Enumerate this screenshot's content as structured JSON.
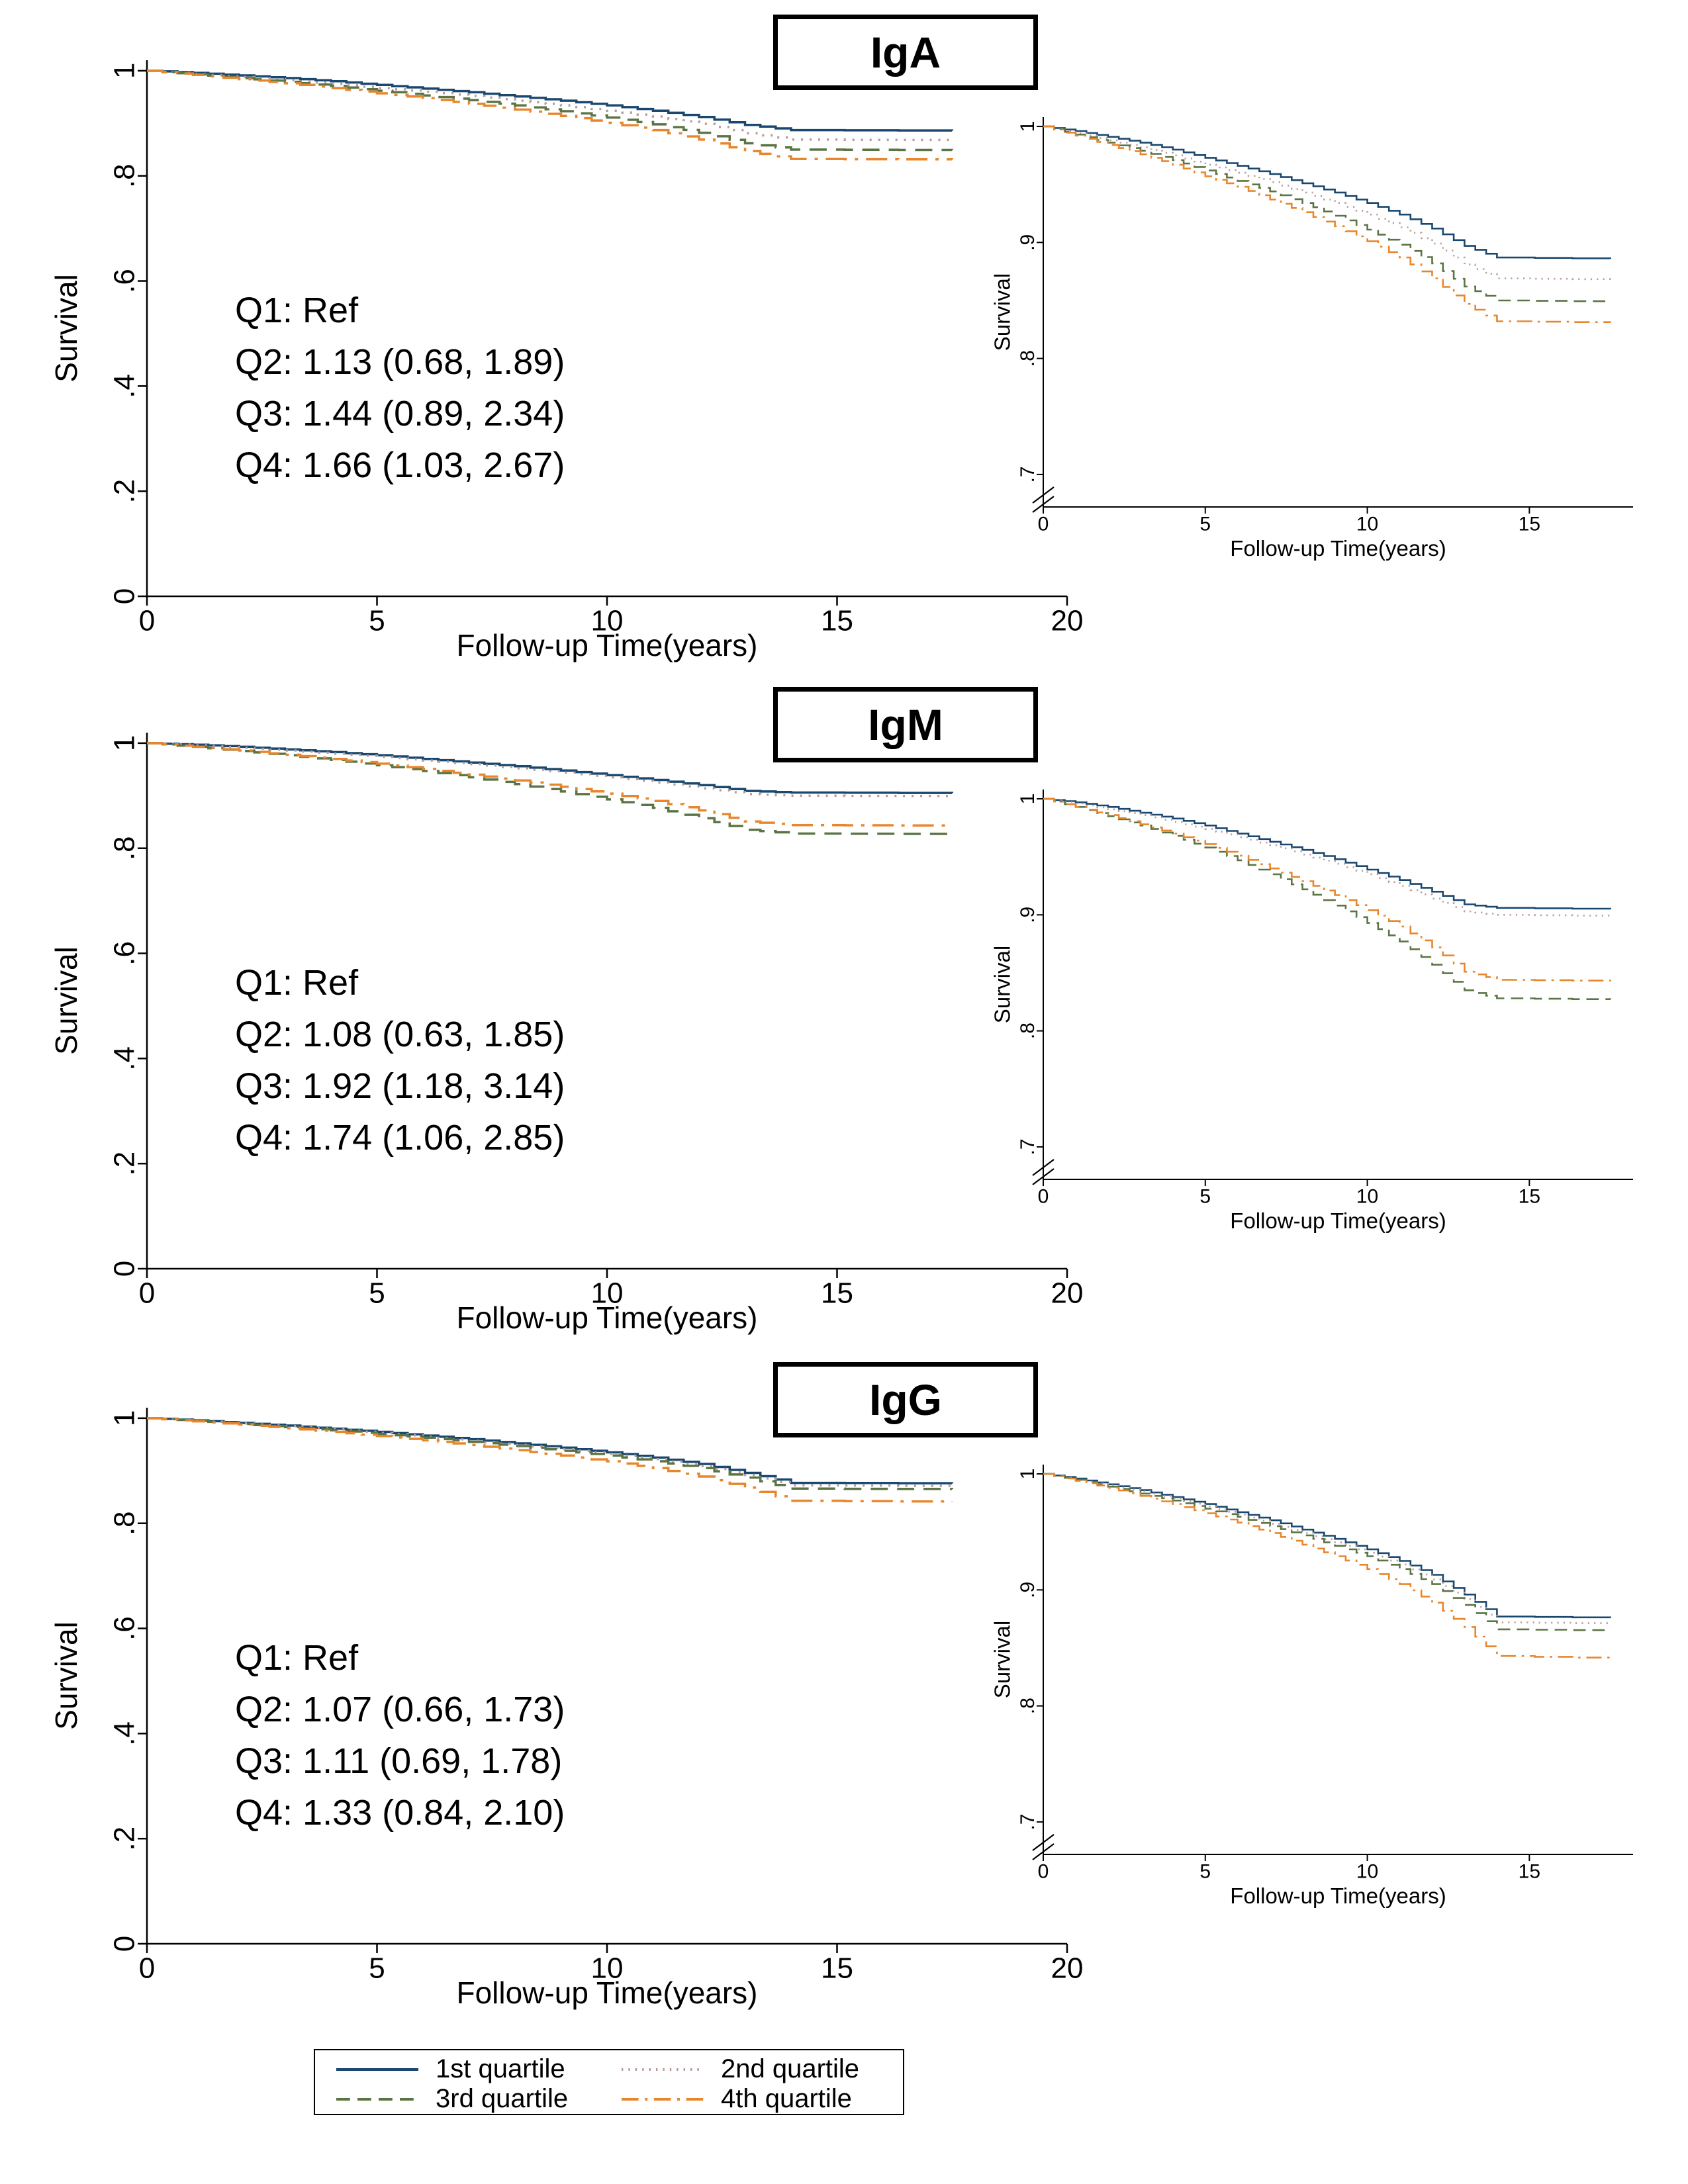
{
  "figure": {
    "background": "#ffffff"
  },
  "legend": {
    "items": [
      {
        "label": "1st quartile",
        "color": "#1a476f",
        "dash": "solid"
      },
      {
        "label": "2nd quartile",
        "color": "#b79b9b",
        "dash": "dot"
      },
      {
        "label": "3rd quartile",
        "color": "#5b7444",
        "dash": "dash"
      },
      {
        "label": "4th quartile",
        "color": "#e8862c",
        "dash": "dashdot"
      }
    ]
  },
  "axes": {
    "main": {
      "xlim": [
        0,
        20
      ],
      "ylim": [
        0,
        1.02
      ],
      "xticks": [
        "0",
        "5",
        "10",
        "15",
        "20"
      ],
      "yticks": [
        "0",
        ".2",
        ".4",
        ".6",
        ".8",
        "1"
      ],
      "axis_break": false
    },
    "inset": {
      "xlim": [
        0,
        18.2
      ],
      "ylim": [
        0.672,
        1.008
      ],
      "xticks": [
        "0",
        "5",
        "10",
        "15"
      ],
      "yticks": [
        ".7",
        ".8",
        ".9",
        "1"
      ],
      "axis_break": true
    }
  },
  "chart_data": [
    {
      "type": "line",
      "title": "IgA",
      "xlabel": "Follow-up Time(years)",
      "ylabel": "Survival",
      "xlim": [
        0,
        20
      ],
      "ylim": [
        0,
        1
      ],
      "annotation_lines": [
        "Q1: Ref",
        "Q2: 1.13 (0.68, 1.89)",
        "Q3: 1.44 (0.89, 2.34)",
        "Q4: 1.66 (1.03, 2.67)"
      ],
      "x": [
        0,
        1,
        2,
        3,
        4,
        5,
        6,
        7,
        8,
        9,
        10,
        11,
        12,
        13,
        14,
        17.5
      ],
      "series": [
        {
          "name": "1st quartile",
          "values": [
            1,
            0.996,
            0.991,
            0.986,
            0.98,
            0.973,
            0.966,
            0.959,
            0.951,
            0.943,
            0.934,
            0.924,
            0.912,
            0.897,
            0.887,
            0.886
          ]
        },
        {
          "name": "2nd quartile",
          "values": [
            1,
            0.994,
            0.988,
            0.982,
            0.975,
            0.967,
            0.96,
            0.952,
            0.943,
            0.934,
            0.924,
            0.913,
            0.899,
            0.881,
            0.869,
            0.868
          ]
        },
        {
          "name": "3rd quartile",
          "values": [
            1,
            0.993,
            0.986,
            0.979,
            0.971,
            0.962,
            0.953,
            0.944,
            0.934,
            0.923,
            0.911,
            0.898,
            0.882,
            0.862,
            0.85,
            0.849
          ]
        },
        {
          "name": "4th quartile",
          "values": [
            1,
            0.992,
            0.984,
            0.976,
            0.967,
            0.957,
            0.948,
            0.937,
            0.926,
            0.914,
            0.901,
            0.887,
            0.869,
            0.847,
            0.832,
            0.831
          ]
        }
      ]
    },
    {
      "type": "line",
      "title": "IgM",
      "xlabel": "Follow-up Time(years)",
      "ylabel": "Survival",
      "xlim": [
        0,
        20
      ],
      "ylim": [
        0,
        1
      ],
      "annotation_lines": [
        "Q1: Ref",
        "Q2: 1.08 (0.63, 1.85)",
        "Q3: 1.92 (1.18, 3.14)",
        "Q4: 1.74 (1.06, 2.85)"
      ],
      "x": [
        0,
        1,
        2,
        3,
        4,
        5,
        6,
        7,
        8,
        9,
        10,
        11,
        12,
        13,
        14,
        17.5
      ],
      "series": [
        {
          "name": "1st quartile",
          "values": [
            1,
            0.997,
            0.993,
            0.988,
            0.983,
            0.977,
            0.97,
            0.963,
            0.956,
            0.948,
            0.939,
            0.93,
            0.92,
            0.909,
            0.906,
            0.905
          ]
        },
        {
          "name": "2nd quartile",
          "values": [
            1,
            0.996,
            0.991,
            0.986,
            0.98,
            0.974,
            0.967,
            0.96,
            0.952,
            0.944,
            0.935,
            0.925,
            0.914,
            0.903,
            0.9,
            0.899
          ]
        },
        {
          "name": "3rd quartile",
          "values": [
            1,
            0.993,
            0.985,
            0.977,
            0.968,
            0.958,
            0.947,
            0.935,
            0.922,
            0.908,
            0.893,
            0.877,
            0.857,
            0.835,
            0.828,
            0.827
          ]
        },
        {
          "name": "4th quartile",
          "values": [
            1,
            0.993,
            0.986,
            0.978,
            0.97,
            0.961,
            0.951,
            0.94,
            0.929,
            0.917,
            0.904,
            0.89,
            0.872,
            0.851,
            0.844,
            0.843
          ]
        }
      ]
    },
    {
      "type": "line",
      "title": "IgG",
      "xlabel": "Follow-up Time(years)",
      "ylabel": "Survival",
      "xlim": [
        0,
        20
      ],
      "ylim": [
        0,
        1
      ],
      "annotation_lines": [
        "Q1: Ref",
        "Q2: 1.07 (0.66, 1.73)",
        "Q3: 1.11 (0.69, 1.78)",
        "Q4: 1.33 (0.84, 2.10)"
      ],
      "x": [
        0,
        1,
        2,
        3,
        4,
        5,
        6,
        7,
        8,
        9,
        10,
        11,
        12,
        13,
        14,
        17.5
      ],
      "series": [
        {
          "name": "1st quartile",
          "values": [
            1,
            0.996,
            0.991,
            0.986,
            0.98,
            0.974,
            0.967,
            0.96,
            0.952,
            0.944,
            0.935,
            0.925,
            0.913,
            0.896,
            0.877,
            0.876
          ]
        },
        {
          "name": "2nd quartile",
          "values": [
            1,
            0.995,
            0.99,
            0.985,
            0.979,
            0.972,
            0.965,
            0.957,
            0.949,
            0.941,
            0.932,
            0.922,
            0.909,
            0.892,
            0.872,
            0.871
          ]
        },
        {
          "name": "3rd quartile",
          "values": [
            1,
            0.995,
            0.989,
            0.983,
            0.977,
            0.97,
            0.963,
            0.955,
            0.947,
            0.938,
            0.929,
            0.918,
            0.905,
            0.887,
            0.866,
            0.865
          ]
        },
        {
          "name": "4th quartile",
          "values": [
            1,
            0.994,
            0.988,
            0.981,
            0.974,
            0.966,
            0.958,
            0.949,
            0.939,
            0.929,
            0.918,
            0.905,
            0.889,
            0.868,
            0.843,
            0.841
          ]
        }
      ]
    }
  ]
}
